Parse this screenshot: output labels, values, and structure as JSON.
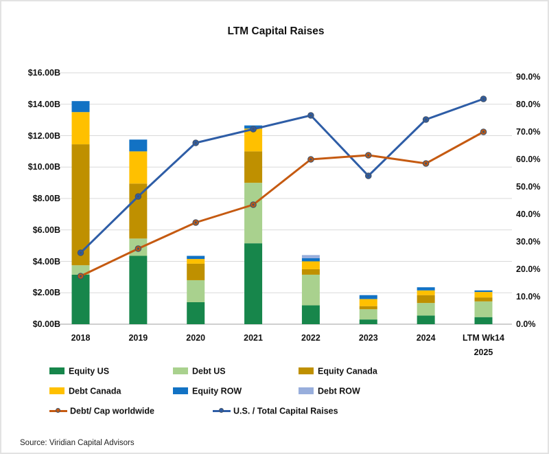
{
  "title": "LTM Capital Raises",
  "source": "Source: Viridian Capital Advisors",
  "colors": {
    "equity_us": "#17864B",
    "debt_us": "#A9D18E",
    "equity_canada": "#BF9000",
    "debt_canada": "#FFC000",
    "equity_row": "#1272C4",
    "debt_row": "#98AEDC",
    "debt_cap_line": "#C55A11",
    "us_total_line": "#2E5DA6",
    "gridline": "#D9D9D9",
    "axis_line": "#BFBFBF"
  },
  "chart_data": {
    "type": "combo",
    "bar_mode": "stacked",
    "grid": true,
    "legend_position": "bottom",
    "categories": [
      "2018",
      "2019",
      "2020",
      "2021",
      "2022",
      "2023",
      "2024",
      "LTM Wk14 2025"
    ],
    "category_labels": [
      [
        "2018"
      ],
      [
        "2019"
      ],
      [
        "2020"
      ],
      [
        "2021"
      ],
      [
        "2022"
      ],
      [
        "2023"
      ],
      [
        "2024"
      ],
      [
        "LTM Wk14",
        "2025"
      ]
    ],
    "bar_series": [
      {
        "name": "Equity US",
        "color": "#17864B",
        "values": [
          3.15,
          4.35,
          1.4,
          5.15,
          1.2,
          0.3,
          0.55,
          0.45
        ]
      },
      {
        "name": "Debt US",
        "color": "#A9D18E",
        "values": [
          0.6,
          1.1,
          1.4,
          3.85,
          1.95,
          0.65,
          0.8,
          1.0
        ]
      },
      {
        "name": "Equity Canada",
        "color": "#BF9000",
        "values": [
          7.7,
          3.5,
          1.05,
          2.0,
          0.35,
          0.2,
          0.5,
          0.25
        ]
      },
      {
        "name": "Debt Canada",
        "color": "#FFC000",
        "values": [
          2.05,
          2.05,
          0.3,
          1.45,
          0.5,
          0.45,
          0.3,
          0.35
        ]
      },
      {
        "name": "Equity ROW",
        "color": "#1272C4",
        "values": [
          0.7,
          0.75,
          0.2,
          0.2,
          0.2,
          0.25,
          0.2,
          0.1
        ]
      },
      {
        "name": "Debt ROW",
        "color": "#98AEDC",
        "values": [
          0.0,
          0.0,
          0.0,
          0.0,
          0.2,
          0.0,
          0.0,
          0.0
        ]
      }
    ],
    "bar_totals_B": [
      14.2,
      11.75,
      4.35,
      12.65,
      4.4,
      1.85,
      2.35,
      2.15
    ],
    "line_series": [
      {
        "name": "Debt/ Cap worldwide",
        "color": "#C55A11",
        "axis": "right",
        "values": [
          17.5,
          27.5,
          37.0,
          43.5,
          60.0,
          61.5,
          58.5,
          70.0
        ]
      },
      {
        "name": "U.S. / Total Capital Raises",
        "color": "#2E5DA6",
        "axis": "right",
        "values": [
          26.0,
          46.5,
          66.0,
          71.0,
          76.0,
          54.0,
          74.5,
          82.0
        ]
      }
    ],
    "left_axis": {
      "min": 0,
      "max": 16,
      "step": 2,
      "unit": "$B",
      "tick_labels": [
        "$16.00B",
        "$14.00B",
        "$12.00B",
        "$10.00B",
        "$8.00B",
        "$6.00B",
        "$4.00B",
        "$2.00B",
        "$0.00B"
      ]
    },
    "right_axis": {
      "min": 0,
      "max": 90,
      "step": 10,
      "unit": "%",
      "tick_labels": [
        "90.0%",
        "80.0%",
        "70.0%",
        "60.0%",
        "50.0%",
        "40.0%",
        "30.0%",
        "20.0%",
        "10.0%",
        "0.0%"
      ]
    }
  },
  "legend": {
    "rows": [
      [
        {
          "label": "Equity US",
          "type": "swatch",
          "color": "#17864B"
        },
        {
          "label": "Debt US",
          "type": "swatch",
          "color": "#A9D18E"
        },
        {
          "label": "Equity Canada",
          "type": "swatch",
          "color": "#BF9000"
        }
      ],
      [
        {
          "label": "Debt Canada",
          "type": "swatch",
          "color": "#FFC000"
        },
        {
          "label": "Equity ROW",
          "type": "swatch",
          "color": "#1272C4"
        },
        {
          "label": "Debt ROW",
          "type": "swatch",
          "color": "#98AEDC"
        }
      ],
      [
        {
          "label": "Debt/ Cap worldwide",
          "type": "line",
          "color": "#C55A11"
        },
        {
          "label": "U.S. / Total Capital Raises",
          "type": "line",
          "color": "#2E5DA6"
        }
      ]
    ]
  }
}
